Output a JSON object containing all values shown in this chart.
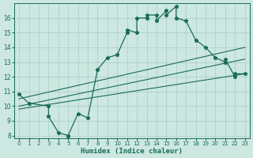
{
  "xlabel": "Humidex (Indice chaleur)",
  "bg_color": "#cce8e0",
  "grid_color": "#aaccc4",
  "line_color": "#1a6b5a",
  "xlim": [
    -0.5,
    23.5
  ],
  "ylim": [
    7.8,
    17.0
  ],
  "xticks": [
    0,
    1,
    2,
    3,
    4,
    5,
    6,
    7,
    8,
    9,
    10,
    11,
    12,
    13,
    14,
    15,
    16,
    17,
    18,
    19,
    20,
    21,
    22,
    23
  ],
  "yticks": [
    8,
    9,
    10,
    11,
    12,
    13,
    14,
    15,
    16
  ],
  "main_line": {
    "x": [
      0,
      1,
      3,
      3,
      4,
      5,
      5,
      6,
      7,
      8,
      9,
      10,
      11,
      11,
      12,
      12,
      13,
      13,
      14,
      14,
      15,
      15,
      16,
      16,
      17,
      18,
      19,
      20,
      21,
      21,
      22,
      22,
      23
    ],
    "y": [
      10.8,
      10.2,
      10.0,
      9.3,
      8.2,
      8.0,
      8.0,
      9.5,
      9.2,
      12.5,
      13.3,
      13.5,
      15.0,
      15.2,
      15.0,
      16.0,
      16.0,
      16.2,
      16.2,
      15.8,
      16.5,
      16.2,
      16.8,
      16.0,
      15.8,
      14.5,
      14.0,
      13.3,
      13.0,
      13.2,
      12.0,
      12.2,
      12.2
    ]
  },
  "straight_lines": [
    {
      "x": [
        0,
        23
      ],
      "y": [
        10.5,
        14.0
      ]
    },
    {
      "x": [
        0,
        23
      ],
      "y": [
        10.0,
        13.2
      ]
    },
    {
      "x": [
        0,
        23
      ],
      "y": [
        9.8,
        12.2
      ]
    }
  ]
}
